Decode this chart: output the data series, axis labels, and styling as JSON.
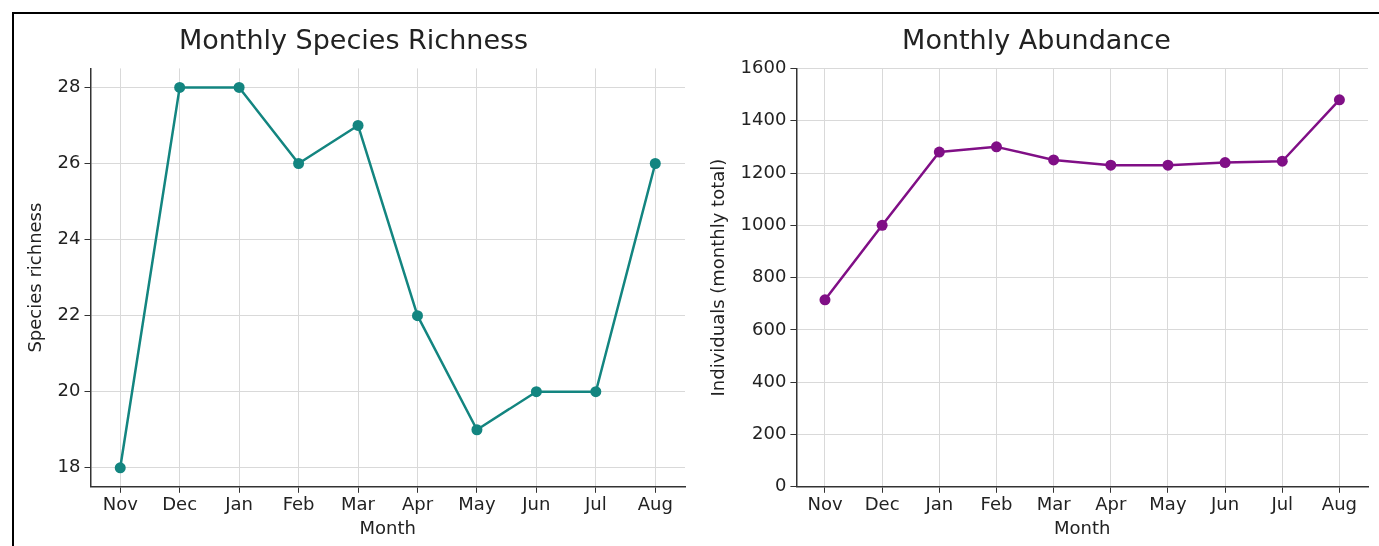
{
  "chart_data": [
    {
      "type": "line",
      "title": "Monthly Species Richness",
      "xlabel": "Month",
      "ylabel": "Species richness",
      "categories": [
        "Nov",
        "Dec",
        "Jan",
        "Feb",
        "Mar",
        "Apr",
        "May",
        "Jun",
        "Jul",
        "Aug"
      ],
      "series": [
        {
          "color": "#138580",
          "values": [
            18,
            28,
            28,
            26,
            27,
            22,
            19,
            20,
            20,
            26
          ]
        }
      ],
      "ylim": [
        17.5,
        28.5
      ],
      "yticks": [
        18,
        20,
        22,
        24,
        26,
        28
      ],
      "grid": true,
      "marker": "circle",
      "line_style": "solid",
      "legend": false
    },
    {
      "type": "line",
      "title": "Monthly Abundance",
      "xlabel": "Month",
      "ylabel": "Individuals (monthly total)",
      "categories": [
        "Nov",
        "Dec",
        "Jan",
        "Feb",
        "Mar",
        "Apr",
        "May",
        "Jun",
        "Jul",
        "Aug"
      ],
      "series": [
        {
          "color": "#800f86",
          "values": [
            715,
            1000,
            1280,
            1300,
            1250,
            1230,
            1230,
            1240,
            1245,
            1480
          ]
        }
      ],
      "ylim": [
        0,
        1600
      ],
      "yticks": [
        0,
        200,
        400,
        600,
        800,
        1000,
        1200,
        1400,
        1600
      ],
      "grid": true,
      "marker": "circle",
      "line_style": "solid",
      "legend": false
    }
  ]
}
